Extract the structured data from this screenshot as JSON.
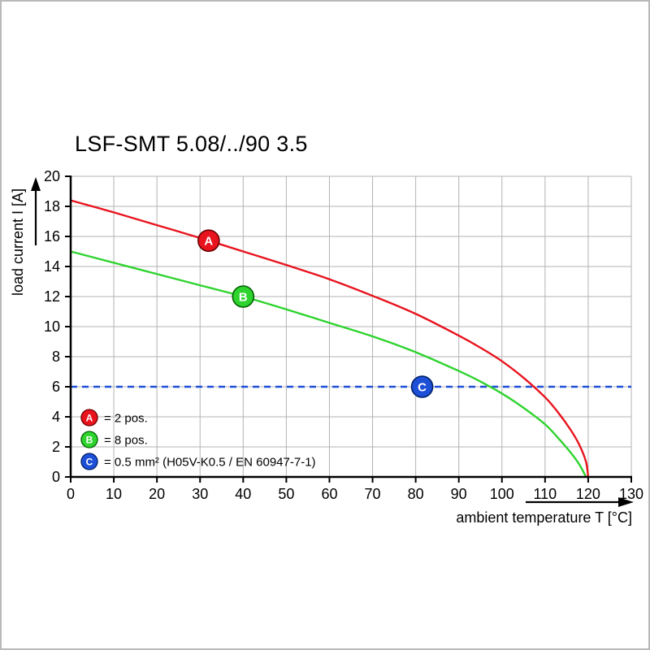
{
  "page": {
    "background": "#ffffff",
    "frame_color": "#b9b9b9"
  },
  "chart_data": {
    "type": "line",
    "title": "LSF-SMT 5.08/../90 3.5",
    "xlabel": "ambient temperature T [°C]",
    "ylabel": "load current I [A]",
    "xlim": [
      0,
      130
    ],
    "ylim": [
      0,
      20
    ],
    "x_ticks": [
      0,
      10,
      20,
      30,
      40,
      50,
      60,
      70,
      80,
      90,
      100,
      110,
      120,
      130
    ],
    "y_ticks": [
      0,
      2,
      4,
      6,
      8,
      10,
      12,
      14,
      16,
      18,
      20
    ],
    "grid": true,
    "grid_color": "#b3b3b3",
    "axis_color": "#000000",
    "legend_position": "bottom-left-inside",
    "series": [
      {
        "name": "A",
        "legend_label": "= 2 pos.",
        "color": "#e8131d",
        "ring": "#6b0000",
        "line_style": "solid",
        "marker": {
          "x": 32,
          "y": 15.72
        },
        "points": [
          [
            0,
            18.4
          ],
          [
            10,
            17.6
          ],
          [
            20,
            16.75
          ],
          [
            30,
            15.9
          ],
          [
            40,
            15.0
          ],
          [
            50,
            14.1
          ],
          [
            60,
            13.15
          ],
          [
            70,
            12.05
          ],
          [
            80,
            10.85
          ],
          [
            90,
            9.4
          ],
          [
            95,
            8.6
          ],
          [
            100,
            7.7
          ],
          [
            105,
            6.6
          ],
          [
            110,
            5.3
          ],
          [
            113,
            4.3
          ],
          [
            116,
            3.1
          ],
          [
            118,
            2.1
          ],
          [
            119.5,
            1.0
          ],
          [
            120,
            0
          ]
        ]
      },
      {
        "name": "B",
        "legend_label": "= 8 pos.",
        "color": "#2ed32e",
        "ring": "#005f00",
        "line_style": "solid",
        "marker": {
          "x": 40,
          "y": 12.0
        },
        "points": [
          [
            0,
            15.0
          ],
          [
            10,
            14.25
          ],
          [
            20,
            13.5
          ],
          [
            30,
            12.75
          ],
          [
            40,
            12.0
          ],
          [
            50,
            11.15
          ],
          [
            60,
            10.25
          ],
          [
            70,
            9.35
          ],
          [
            80,
            8.3
          ],
          [
            90,
            7.05
          ],
          [
            95,
            6.35
          ],
          [
            100,
            5.55
          ],
          [
            105,
            4.6
          ],
          [
            110,
            3.5
          ],
          [
            113,
            2.6
          ],
          [
            116,
            1.6
          ],
          [
            118,
            0.8
          ],
          [
            119.5,
            0
          ]
        ]
      },
      {
        "name": "C",
        "legend_label": "= 0.5 mm² (H05V-K0.5 / EN 60947-7-1)",
        "color": "#1d4fd7",
        "ring": "#001f66",
        "line_style": "dashed",
        "marker": {
          "x": 81.5,
          "y": 6.0
        },
        "points": [
          [
            0,
            6
          ],
          [
            130,
            6
          ]
        ]
      }
    ]
  }
}
